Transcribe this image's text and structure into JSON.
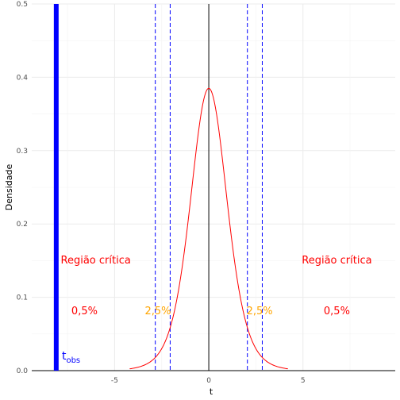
{
  "chart_data": {
    "type": "line",
    "xlabel": "t",
    "ylabel": "Densidade",
    "xlim": [
      -9.4,
      9.9
    ],
    "ylim": [
      0,
      0.5
    ],
    "x_ticks": [
      -5,
      0,
      5
    ],
    "y_ticks": [
      0.0,
      0.1,
      0.2,
      0.3,
      0.4,
      0.5
    ],
    "y_tick_labels": [
      "0.0",
      "0.1",
      "0.2",
      "0.3",
      "0.4",
      "0.5"
    ],
    "grid": true,
    "series": [
      {
        "type": "density-curve",
        "distribution": "t",
        "df": 7,
        "x_range": [
          -4.2,
          4.2
        ],
        "color": "#ff0000"
      }
    ],
    "vertical_lines": [
      {
        "x": 0,
        "style": "solid",
        "color": "#000000"
      },
      {
        "x": -2.84,
        "style": "dashed",
        "color": "#0000ff"
      },
      {
        "x": -2.05,
        "style": "dashed",
        "color": "#0000ff"
      },
      {
        "x": 2.05,
        "style": "dashed",
        "color": "#0000ff"
      },
      {
        "x": 2.84,
        "style": "dashed",
        "color": "#0000ff"
      },
      {
        "x": -8.1,
        "style": "thick",
        "color": "#0000ff"
      }
    ],
    "horizontal_lines": [
      {
        "y": 0,
        "style": "solid",
        "color": "#000000"
      }
    ],
    "annotations": {
      "region_left": {
        "text": "Região crítica",
        "x": -6.0,
        "y": 0.146,
        "color": "#ff0000"
      },
      "region_right": {
        "text": "Região crítica",
        "x": 6.8,
        "y": 0.146,
        "color": "#ff0000"
      },
      "pct_left_outer": {
        "text": "0,5%",
        "x": -6.6,
        "y": 0.077,
        "color": "#ff0000"
      },
      "pct_left_inner": {
        "text": "2,5%",
        "x": -2.7,
        "y": 0.077,
        "color": "#ffa500"
      },
      "pct_right_inner": {
        "text": "2,5%",
        "x": 2.7,
        "y": 0.077,
        "color": "#ffa500"
      },
      "pct_right_outer": {
        "text": "0,5%",
        "x": 6.8,
        "y": 0.077,
        "color": "#ff0000"
      },
      "tobs_main": {
        "text": "t",
        "x": -7.8,
        "y": 0.015,
        "color": "#0000ff"
      },
      "tobs_sub": "obs"
    }
  }
}
